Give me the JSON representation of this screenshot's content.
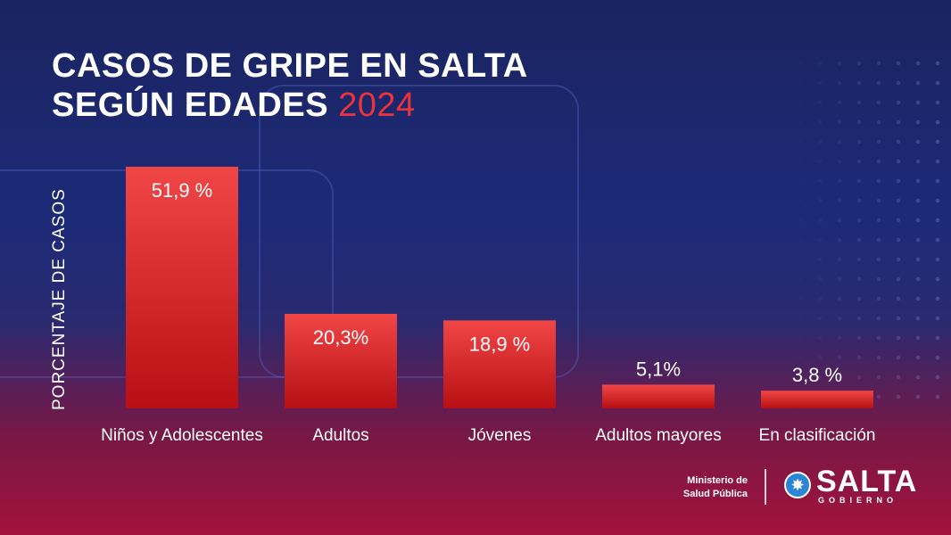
{
  "title": {
    "line1": "CASOS DE GRIPE EN SALTA",
    "line2": "SEGÚN EDADES",
    "year": "2024"
  },
  "footer": {
    "ministry_line1": "Ministerio de",
    "ministry_line2": "Salud Pública",
    "logo_text": "SALTA",
    "logo_subtext": "GOBIERNO"
  },
  "colors": {
    "bar_top": "#f04646",
    "bar_bottom": "#b80f14",
    "title_accent": "#e8343d"
  },
  "chart_data": {
    "type": "bar",
    "title": "CASOS DE GRIPE EN SALTA SEGÚN EDADES 2024",
    "ylabel": "PORCENTAJE DE CASOS",
    "xlabel": "",
    "categories": [
      "Niños y Adolescentes",
      "Adultos",
      "Jóvenes",
      "Adultos mayores",
      "En clasificación"
    ],
    "values": [
      51.9,
      20.3,
      18.9,
      5.1,
      3.8
    ],
    "value_labels": [
      "51,9 %",
      "20,3%",
      "18,9 %",
      "5,1%",
      "3,8 %"
    ],
    "ylim": [
      0,
      51.9
    ],
    "grid": false,
    "legend": "none"
  }
}
